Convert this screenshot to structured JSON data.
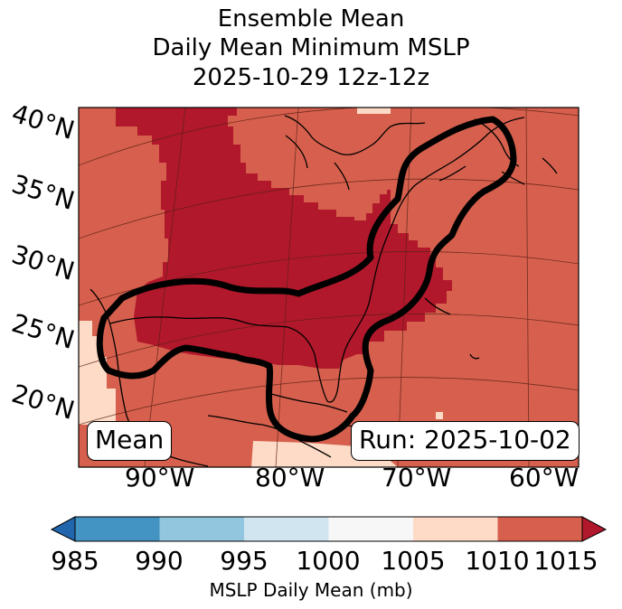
{
  "title": {
    "line1": "Ensemble Mean",
    "line2": "Daily Mean Minimum MSLP",
    "line3": "2025-10-29 12z-12z"
  },
  "map": {
    "lat_labels": [
      "40°N",
      "35°N",
      "30°N",
      "25°N",
      "20°N"
    ],
    "lon_labels": [
      "90°W",
      "80°W",
      "70°W",
      "60°W"
    ],
    "box_left": "Mean",
    "box_right": "Run: 2025-10-02"
  },
  "colorbar": {
    "ticks": [
      "985",
      "990",
      "995",
      "1000",
      "1005",
      "1010",
      "1015"
    ],
    "label": "MSLP Daily Mean (mb)",
    "colors": [
      "#2166ac",
      "#4393c3",
      "#92c5de",
      "#d1e5f0",
      "#f7f7f7",
      "#fddbc7",
      "#d6604d",
      "#b2182b"
    ]
  },
  "chart_data": {
    "type": "heatmap",
    "variable": "MSLP Daily Mean (mb)",
    "levels": [
      985,
      990,
      995,
      1000,
      1005,
      1010,
      1015
    ],
    "extend": "both",
    "title": "Ensemble Mean\nDaily Mean Minimum MSLP\n2025-10-29 12z-12z"
  }
}
